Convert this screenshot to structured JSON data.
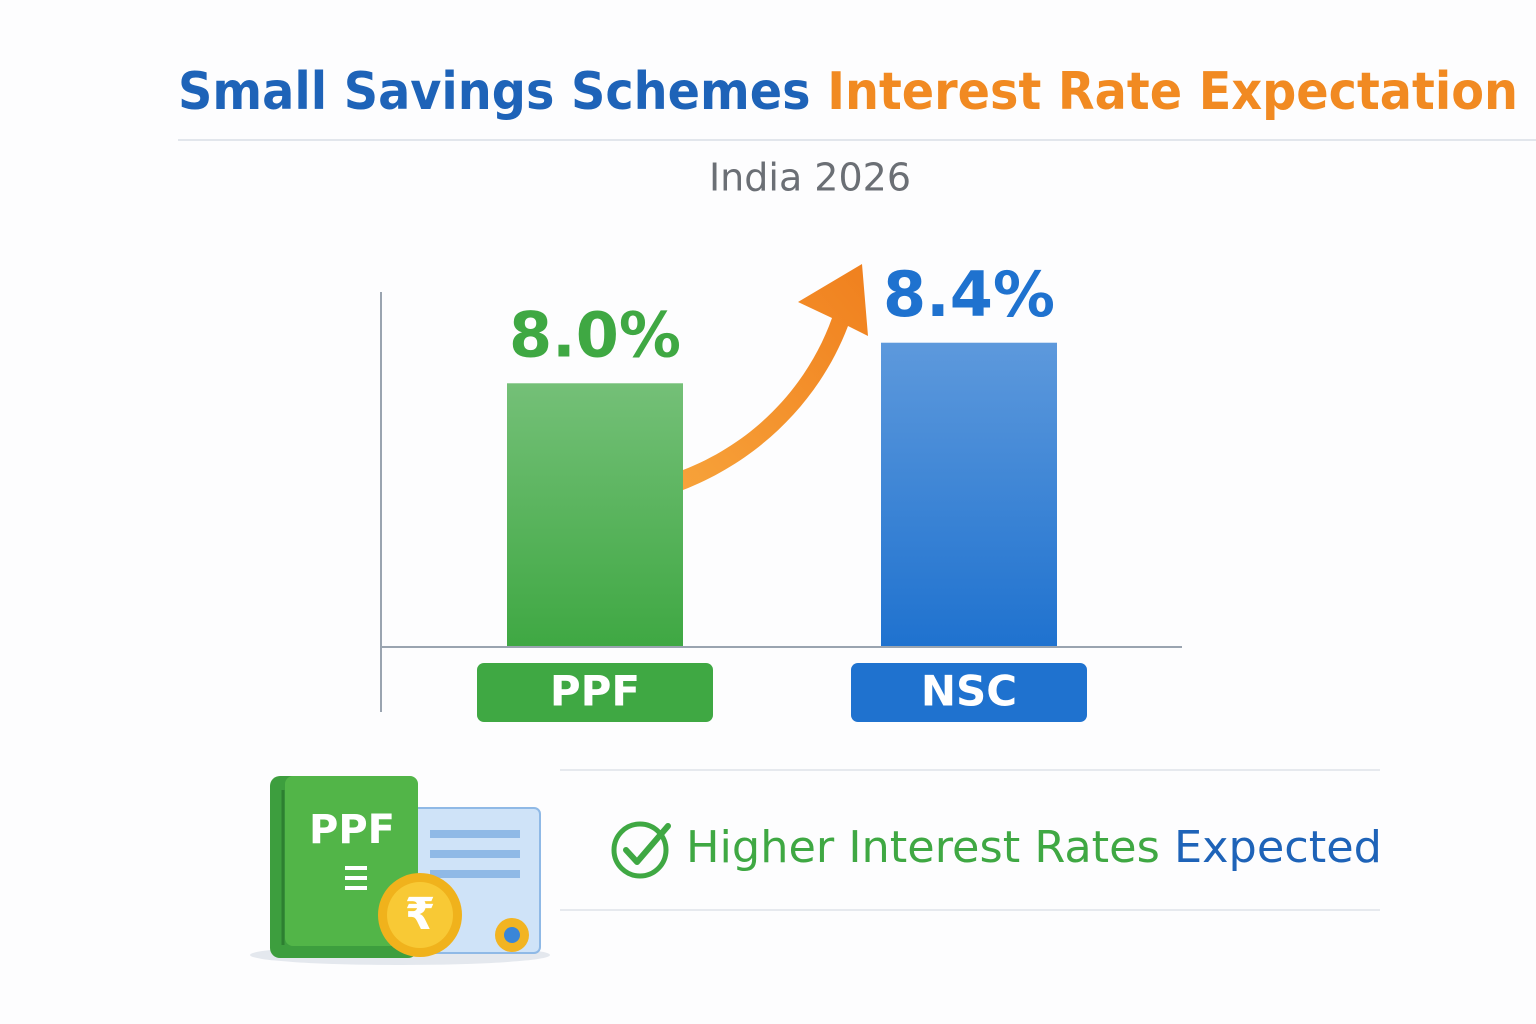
{
  "chart_data": {
    "type": "bar",
    "title": [
      "Small Savings Schemes",
      "Interest Rate Expectation"
    ],
    "subtitle": "India 2026",
    "categories": [
      "PPF",
      "NSC"
    ],
    "values": [
      8.0,
      8.4
    ],
    "value_labels": [
      "8.0%",
      "8.4%"
    ],
    "colors": [
      "#3fa843",
      "#1f72cf"
    ],
    "ylim": [
      5.4,
      8.9
    ],
    "annotation": [
      "Higher Interest Rates",
      "Expected"
    ],
    "icon_label": "PPF"
  }
}
